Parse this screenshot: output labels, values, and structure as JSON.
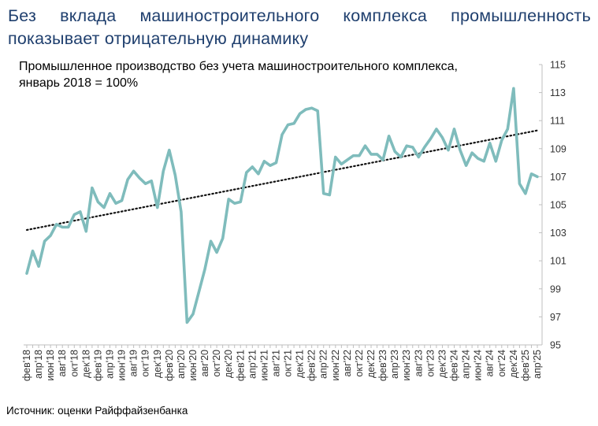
{
  "headline": "Без вклада машиностроительного комплекса промышленность показывает отрицательную динамику",
  "source": "Источник: оценки Райффайзенбанка",
  "colors": {
    "headline": "#1f3f6e",
    "series": "#7fbcbc",
    "trend": "#111111"
  },
  "chart_data": {
    "type": "line",
    "title": "Промышленное производство без учета машиностроительного комплекса, январь 2018 = 100%",
    "xlabel": "",
    "ylabel": "",
    "ylim": [
      95,
      115
    ],
    "yticks": [
      95,
      97,
      99,
      101,
      103,
      105,
      107,
      109,
      111,
      113,
      115
    ],
    "y_axis_position": "right",
    "grid": false,
    "legend": "none",
    "x_tick_labels": [
      "фев'18",
      "апр'18",
      "июн'18",
      "авг'18",
      "окт'18",
      "дек'18",
      "фев'19",
      "апр'19",
      "июн'19",
      "авг'19",
      "окт'19",
      "дек'19",
      "фев'20",
      "апр'20",
      "июн'20",
      "авг'20",
      "окт'20",
      "дек'20",
      "фев'21",
      "апр'21",
      "июн'21",
      "авг'21",
      "окт'21",
      "дек'21",
      "фев'22",
      "апр'22",
      "июн'22",
      "авг'22",
      "окт'22",
      "дек'22",
      "фев'23",
      "апр'23",
      "июн'23",
      "авг'23",
      "окт'23",
      "дек'23",
      "фев'24",
      "апр'24",
      "июн'24",
      "авг'24",
      "окт'24",
      "дек'24",
      "фев'25",
      "апр'25"
    ],
    "series": [
      {
        "style": "solid",
        "values": [
          100.1,
          101.7,
          100.6,
          102.4,
          102.8,
          103.6,
          103.4,
          103.4,
          104.3,
          104.5,
          103.1,
          106.2,
          105.2,
          104.8,
          105.8,
          105.1,
          105.3,
          106.8,
          107.4,
          106.9,
          106.5,
          106.7,
          104.8,
          107.4,
          108.9,
          107.1,
          104.5,
          96.6,
          97.2,
          98.8,
          100.4,
          102.4,
          101.6,
          102.6,
          105.4,
          105.1,
          105.2,
          107.3,
          107.7,
          107.2,
          108.1,
          107.8,
          108.0,
          110.0,
          110.7,
          110.8,
          111.5,
          111.8,
          111.9,
          111.7,
          105.8,
          105.7,
          108.4,
          107.9,
          108.2,
          108.5,
          108.5,
          109.2,
          108.6,
          108.6,
          108.2,
          109.9,
          108.8,
          108.4,
          109.2,
          109.1,
          108.4,
          109.1,
          109.7,
          110.4,
          109.8,
          108.9,
          110.4,
          108.9,
          107.8,
          108.7,
          108.3,
          108.1,
          109.4,
          108.1,
          109.6,
          110.4,
          113.3,
          106.5,
          105.8,
          107.2,
          107.0
        ]
      },
      {
        "style": "dotted",
        "values": [
          103.2,
          110.3
        ]
      }
    ]
  }
}
